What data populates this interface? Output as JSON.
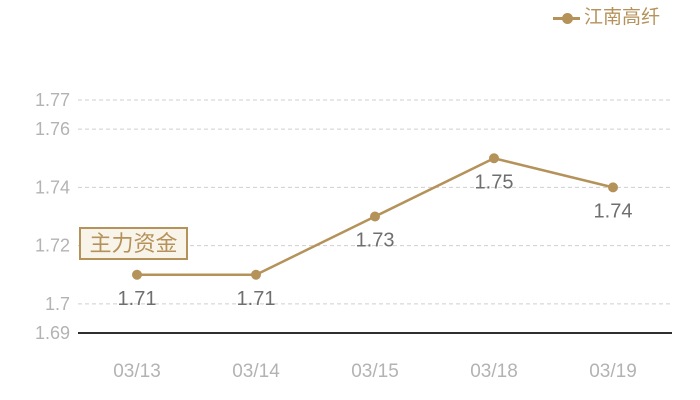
{
  "legend": {
    "label": "江南高纤"
  },
  "overlay_button": {
    "label": "主力资金"
  },
  "colors": {
    "line": "#b5925a",
    "marker": "#b5925a",
    "grid": "#cfcfcf",
    "axis": "#2f2f2f",
    "tick_label": "#b3b3b3",
    "x_label": "#b3b3b3",
    "point_label": "#6f6f6f",
    "legend_text": "#b5925a",
    "button_bg": "#f9f4ea",
    "button_border": "#b5925a",
    "button_text": "#b5925a",
    "background": "#ffffff"
  },
  "chart_data": {
    "type": "line",
    "title": "",
    "xlabel": "",
    "ylabel": "",
    "categories": [
      "03/13",
      "03/14",
      "03/15",
      "03/18",
      "03/19"
    ],
    "series": [
      {
        "name": "江南高纤",
        "values": [
          1.71,
          1.71,
          1.73,
          1.75,
          1.74
        ]
      }
    ],
    "point_labels": [
      "1.71",
      "1.71",
      "1.73",
      "1.75",
      "1.74"
    ],
    "y_ticks": [
      1.77,
      1.76,
      1.74,
      1.72,
      1.7,
      1.69
    ],
    "y_tick_labels": [
      "1.77",
      "1.76",
      "1.74",
      "1.72",
      "1.7",
      "1.69"
    ],
    "ylim": [
      1.69,
      1.77
    ],
    "baseline_value": 1.69,
    "grid": "dashed horizontal lines at y ticks, solid dark baseline",
    "legend_position": "top-right",
    "marker": "filled-circle"
  }
}
